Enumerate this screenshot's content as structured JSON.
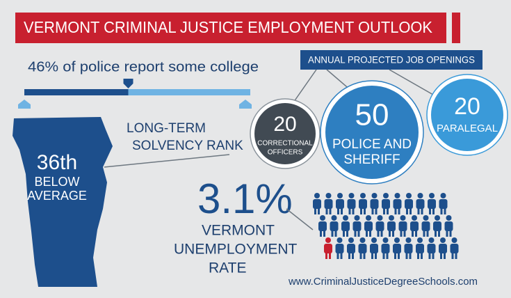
{
  "title": "VERMONT CRIMINAL JUSTICE EMPLOYMENT OUTLOOK",
  "college": {
    "label": "46% of police report some college",
    "percent": 46
  },
  "solvency": {
    "label_lines": [
      "LONG-TERM",
      "SOLVENCY RANK"
    ],
    "rank": "36th",
    "rating_lines": [
      "BELOW",
      "AVERAGE"
    ]
  },
  "job_openings": {
    "title": "ANNUAL PROJECTED JOB OPENINGS",
    "items": [
      {
        "value": 20,
        "label_lines": [
          "CORRECTIONAL",
          "OFFICERS"
        ]
      },
      {
        "value": 50,
        "label_lines": [
          "POLICE AND",
          "SHERIFF"
        ]
      },
      {
        "value": 20,
        "label_lines": [
          "PARALEGAL"
        ]
      }
    ]
  },
  "unemployment": {
    "rate": "3.1%",
    "label_lines": [
      "VERMONT",
      "UNEMPLOYMENT",
      "RATE"
    ]
  },
  "website": "www.CriminalJusticeDegreeSchools.com"
}
